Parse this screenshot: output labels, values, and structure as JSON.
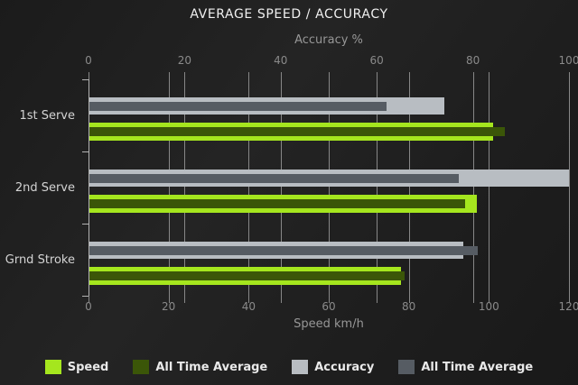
{
  "title": "AVERAGE SPEED / ACCURACY",
  "chart_data": {
    "type": "bar",
    "orientation": "horizontal",
    "grid": true,
    "legend_position": "bottom",
    "categories": [
      "1st Serve",
      "2nd Serve",
      "Grnd Stroke"
    ],
    "axes": {
      "top": {
        "label": "Accuracy %",
        "min": 0,
        "max": 100,
        "ticks": [
          0,
          20,
          40,
          60,
          80,
          100
        ]
      },
      "bottom": {
        "label": "Speed km/h",
        "min": 0,
        "max": 120,
        "ticks": [
          0,
          20,
          40,
          60,
          80,
          100,
          120
        ]
      }
    },
    "series": [
      {
        "name": "Speed",
        "axis": "bottom",
        "role": "outer",
        "color": "#a5e61e",
        "values": [
          101,
          97,
          78
        ]
      },
      {
        "name": "All Time Average",
        "axis": "bottom",
        "role": "inner",
        "color": "#3b5608",
        "values": [
          104,
          94,
          79
        ]
      },
      {
        "name": "Accuracy",
        "axis": "top",
        "role": "outer",
        "color": "#b8bdc2",
        "values": [
          74,
          100,
          78
        ]
      },
      {
        "name": "All Time Average",
        "axis": "top",
        "role": "inner",
        "color": "#565c63",
        "values": [
          62,
          77,
          81
        ]
      }
    ]
  },
  "colors": {
    "background": "#1e1e1e",
    "gridline": "#878787",
    "axis_line": "#b3b3b3",
    "tick_text": "#8a8a8a",
    "axis_label_text": "#979797",
    "category_text": "#d4d4d4",
    "title_text": "#f0f0f0",
    "legend_text": "#e9e9e9"
  }
}
